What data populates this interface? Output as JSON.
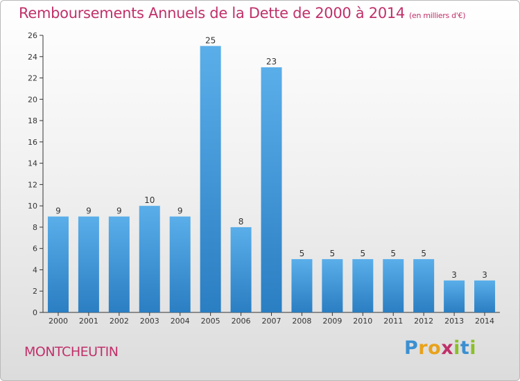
{
  "chart_data": {
    "type": "bar",
    "title": "Remboursements Annuels de la Dette de 2000 à 2014",
    "subtitle": "(en milliers d'€)",
    "categories": [
      "2000",
      "2001",
      "2002",
      "2003",
      "2004",
      "2005",
      "2006",
      "2007",
      "2008",
      "2009",
      "2010",
      "2011",
      "2012",
      "2013",
      "2014"
    ],
    "values": [
      9,
      9,
      9,
      10,
      9,
      25,
      8,
      23,
      5,
      5,
      5,
      5,
      5,
      3,
      3
    ],
    "data_labels": [
      "9",
      "9",
      "9",
      "10",
      "9",
      "25",
      "8",
      "23",
      "5",
      "5",
      "5",
      "5",
      "5",
      "3",
      "3"
    ],
    "ylim": [
      0,
      26
    ],
    "yticks": [
      0,
      2,
      4,
      6,
      8,
      10,
      12,
      14,
      16,
      18,
      20,
      22,
      24,
      26
    ],
    "grid": false,
    "colors": {
      "bar_light": "#5aaee9",
      "bar_dark": "#2a7ec2",
      "text": "#c0306a",
      "axis": "#333333"
    }
  },
  "place": "MONTCHEUTIN",
  "logo": {
    "text": "Proxiti",
    "letter_colors": [
      "#3b8fd1",
      "#e8a21c",
      "#e8a21c",
      "#c0306a",
      "#8bbf2a",
      "#3b8fd1",
      "#8bbf2a"
    ]
  }
}
